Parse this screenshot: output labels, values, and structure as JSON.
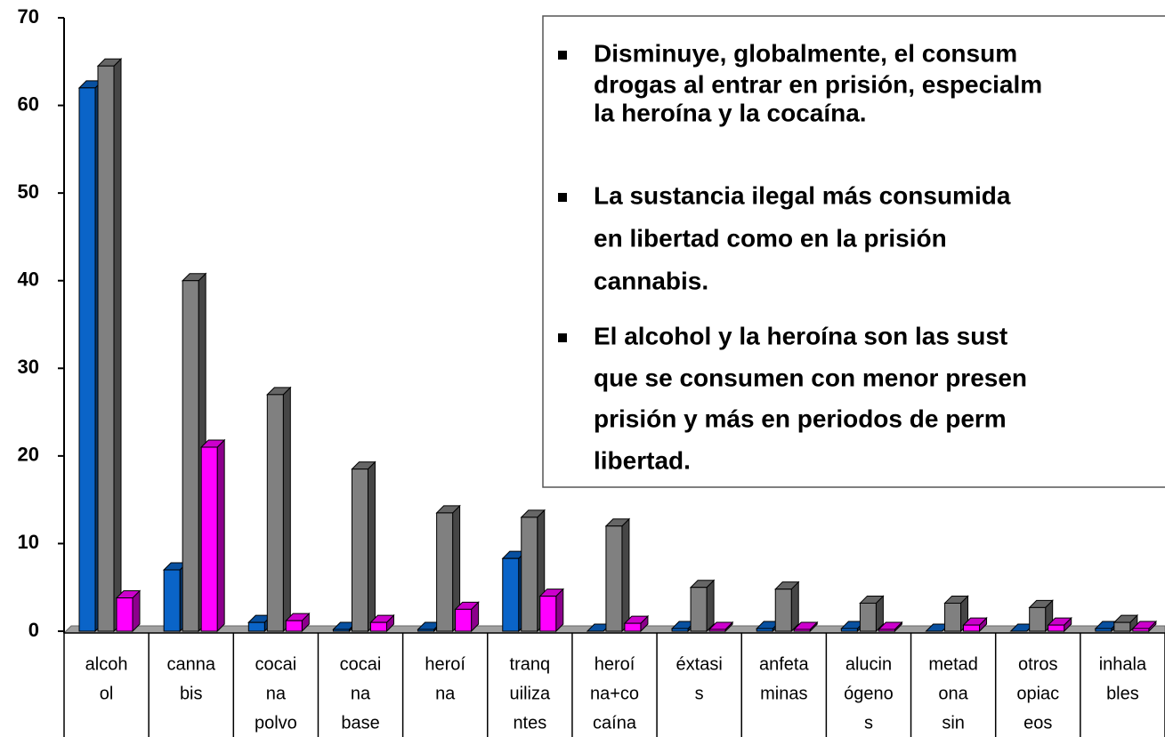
{
  "chart_data": {
    "type": "bar3d",
    "categories": [
      [
        "alcoh",
        "ol"
      ],
      [
        "canna",
        "bis"
      ],
      [
        "cocai",
        "na",
        "polvo"
      ],
      [
        "cocai",
        "na",
        "base"
      ],
      [
        "heroí",
        "na"
      ],
      [
        "tranq",
        "uiliza",
        "ntes"
      ],
      [
        "heroí",
        "na+co",
        "caína"
      ],
      [
        "éxtasi",
        "s"
      ],
      [
        "anfeta",
        "minas"
      ],
      [
        "alucin",
        "ógeno",
        "s"
      ],
      [
        "metad",
        "ona",
        "sin"
      ],
      [
        "otros",
        "opiac",
        "eos"
      ],
      [
        "inhala",
        "bles"
      ]
    ],
    "series": [
      {
        "color": "#0a64c8",
        "values": [
          62,
          7,
          1,
          0.2,
          0.2,
          8.3,
          0,
          0.3,
          0.3,
          0.3,
          0,
          0,
          0.3
        ]
      },
      {
        "color": "#808080",
        "values": [
          64.5,
          40,
          27,
          18.5,
          13.5,
          13,
          12,
          5,
          4.8,
          3.2,
          3.2,
          2.7,
          1
        ]
      },
      {
        "color": "#ff00ff",
        "values": [
          3.8,
          21,
          1.2,
          1,
          2.5,
          4,
          0.9,
          0.2,
          0.2,
          0.2,
          0.7,
          0.7,
          0.3
        ]
      }
    ],
    "ylim": [
      0,
      70
    ],
    "yticks": [
      0,
      10,
      20,
      30,
      40,
      50,
      60,
      70
    ],
    "annotation": [
      [
        "Disminuye, globalmente, el consum",
        "drogas al entrar en prisión, especialm",
        "la heroína y la cocaína."
      ],
      [
        "La sustancia ilegal más consumida",
        "en libertad como en la prisión",
        "cannabis."
      ],
      [
        "El alcohol y la heroína son las sust",
        "que se consumen con menor presen",
        "prisión y más en periodos de perm",
        "libertad."
      ]
    ]
  }
}
